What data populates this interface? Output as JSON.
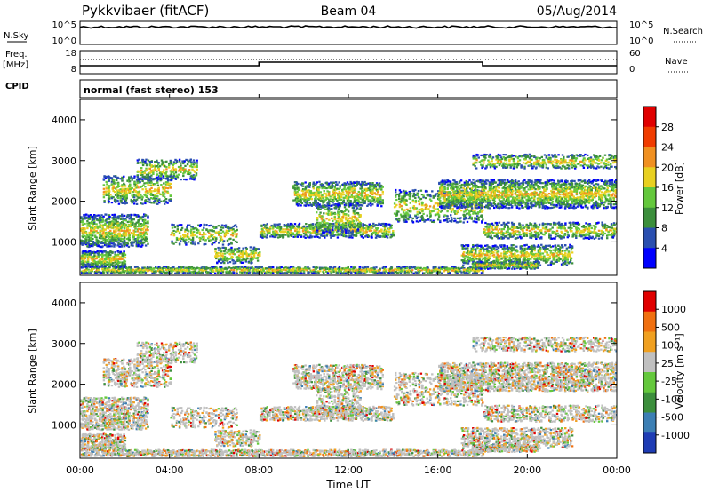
{
  "header": {
    "title": "Pykkvibaer (fitACF)",
    "beam": "Beam 04",
    "date": "05/Aug/2014"
  },
  "noise_panel": {
    "left_label": "N.Sky",
    "right_label": "N.Search",
    "left_ticks": [
      "10^5",
      "10^0"
    ],
    "right_ticks": [
      "10^5",
      "10^0"
    ]
  },
  "freq_panel": {
    "left_label_1": "Freq.",
    "left_label_2": "[MHz]",
    "right_label": "Nave",
    "left_ticks": [
      "18",
      "8"
    ],
    "right_ticks": [
      "60",
      "0"
    ]
  },
  "cpid": {
    "label": "CPID",
    "text": "normal (fast stereo) 153"
  },
  "x_axis": {
    "ticks": [
      "00:00",
      "04:00",
      "08:00",
      "12:00",
      "16:00",
      "20:00",
      "00:00"
    ],
    "label": "Time UT"
  },
  "power_panel": {
    "ylabel": "Slant Range [km]",
    "yticks": [
      "4000",
      "3000",
      "2000",
      "1000"
    ],
    "colorbar_label": "Power [dB]",
    "colorbar_ticks": [
      "28",
      "24",
      "20",
      "16",
      "12",
      "8",
      "4"
    ],
    "colors": [
      "#0000ff",
      "#2a4fb0",
      "#3c8f3c",
      "#64c83c",
      "#e8d020",
      "#f09020",
      "#f03c00",
      "#e00000"
    ]
  },
  "velocity_panel": {
    "ylabel": "Slant Range [km]",
    "yticks": [
      "4000",
      "3000",
      "2000",
      "1000"
    ],
    "colorbar_label": "Velocity [m s⁻¹]",
    "colorbar_ticks": [
      "1000",
      "500",
      "100",
      "25",
      "-25",
      "-100",
      "-500",
      "-1000"
    ],
    "colors": [
      "#1e3cb4",
      "#3c7fb4",
      "#3c8f3c",
      "#64c83c",
      "#c0c0c0",
      "#f0a020",
      "#f07010",
      "#e00000"
    ]
  },
  "chart_data": {
    "type": "heatmap",
    "x_range_hours": [
      0,
      24
    ],
    "y_range_km": [
      180,
      4500
    ],
    "freq_steps": [
      {
        "from_hour": 0,
        "to_hour": 8,
        "mhz": 10
      },
      {
        "from_hour": 8,
        "to_hour": 18,
        "mhz": 12
      },
      {
        "from_hour": 18,
        "to_hour": 24,
        "mhz": 10
      }
    ]
  }
}
